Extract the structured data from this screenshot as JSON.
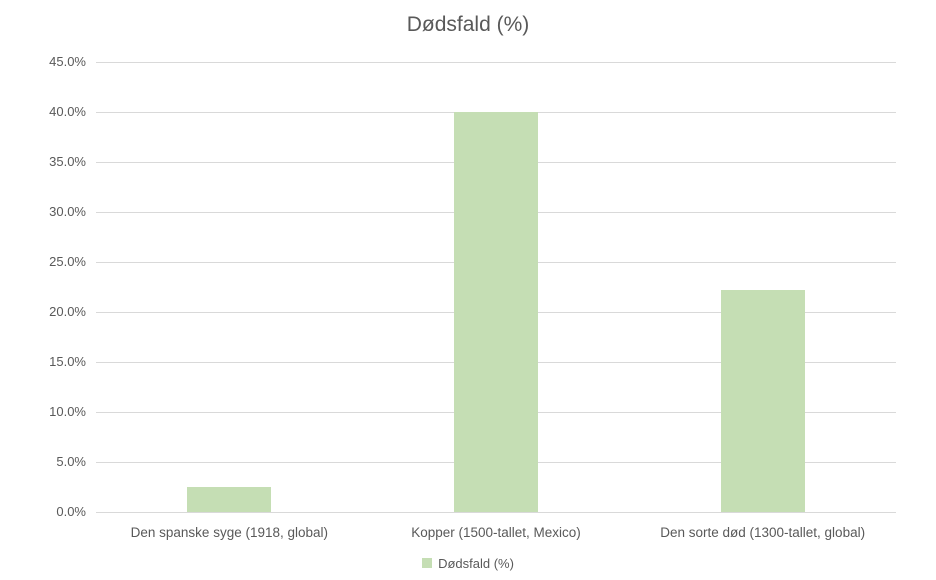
{
  "chart_data": {
    "type": "bar",
    "title": "Dødsfald (%)",
    "categories": [
      "Den spanske syge (1918, global)",
      "Kopper (1500-tallet, Mexico)",
      "Den sorte død (1300-tallet, global)"
    ],
    "series": [
      {
        "name": "Dødsfald (%)",
        "values": [
          2.5,
          40.0,
          22.2
        ]
      }
    ],
    "ylim": [
      0,
      45
    ],
    "ytick_step": 5,
    "yticks": [
      "0.0%",
      "5.0%",
      "10.0%",
      "15.0%",
      "20.0%",
      "25.0%",
      "30.0%",
      "35.0%",
      "40.0%",
      "45.0%"
    ],
    "grid": true,
    "xlabel": "",
    "ylabel": "",
    "legend": {
      "position": "bottom",
      "label": "Dødsfald (%)"
    },
    "colors": {
      "bar": "#c5deb4",
      "grid": "#d9d9d9",
      "text": "#595959",
      "background": "#ffffff"
    }
  }
}
